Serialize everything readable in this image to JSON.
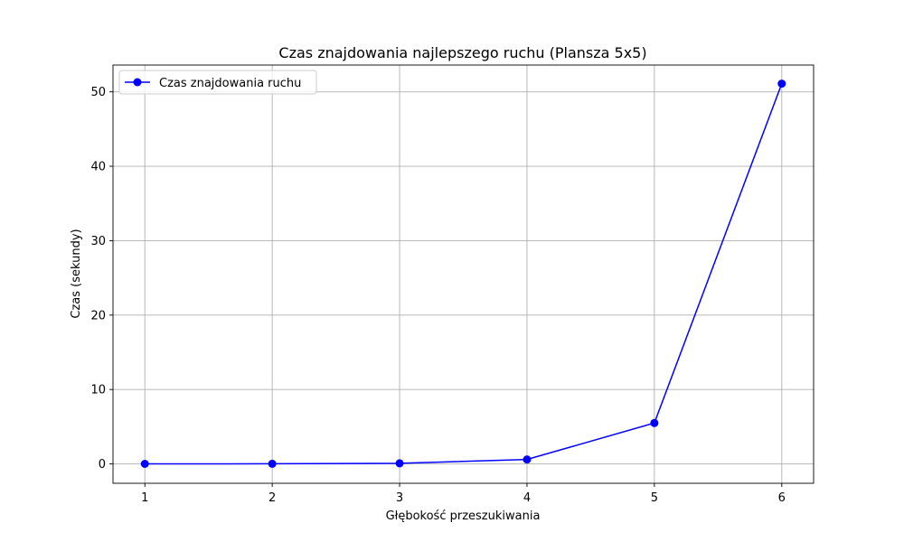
{
  "chart_data": {
    "type": "line",
    "title": "Czas znajdowania najlepszego ruchu (Plansza 5x5)",
    "xlabel": "Głębokość przeszukiwania",
    "ylabel": "Czas (sekundy)",
    "x": [
      1,
      2,
      3,
      4,
      5,
      6
    ],
    "x_ticks": [
      "1",
      "2",
      "3",
      "4",
      "5",
      "6"
    ],
    "y_ticks": [
      "0",
      "10",
      "20",
      "30",
      "40",
      "50"
    ],
    "xlim": [
      0.75,
      6.25
    ],
    "ylim": [
      -2.6,
      53.6
    ],
    "grid": true,
    "legend_position": "upper left",
    "series": [
      {
        "name": "Czas znajdowania ruchu",
        "values": [
          0.01,
          0.02,
          0.08,
          0.6,
          5.5,
          51.1
        ],
        "color": "#0000ff",
        "marker": "circle"
      }
    ]
  }
}
